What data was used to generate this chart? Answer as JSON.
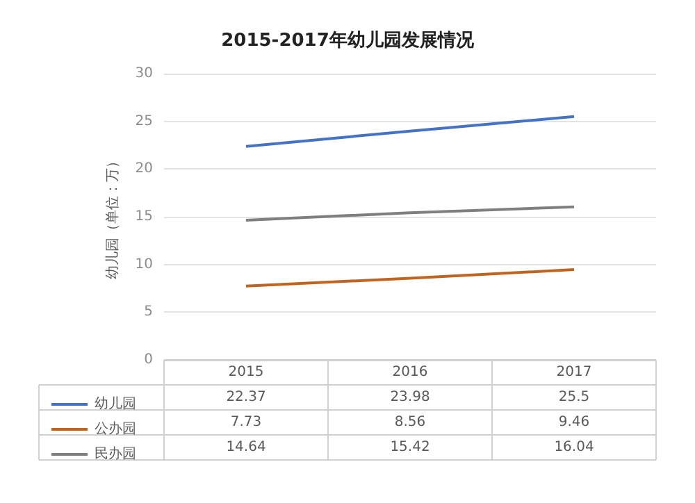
{
  "chart_data": {
    "type": "line",
    "title": "2015-2017年幼儿园发展情况",
    "ylabel": "幼儿园（单位：万）",
    "categories": [
      "2015",
      "2016",
      "2017"
    ],
    "series": [
      {
        "name": "幼儿园",
        "color": "#4472c4",
        "values": [
          22.37,
          23.98,
          25.5
        ]
      },
      {
        "name": "公办园",
        "color": "#c0651f",
        "values": [
          7.73,
          8.56,
          9.46
        ]
      },
      {
        "name": "民办园",
        "color": "#7f7f7f",
        "values": [
          14.64,
          15.42,
          16.04
        ]
      }
    ],
    "ylim": [
      0,
      30
    ],
    "yticks": [
      0,
      5,
      10,
      15,
      20,
      25,
      30
    ],
    "grid": "y",
    "legend": "bottom",
    "data_labels": true,
    "marker": "none"
  }
}
